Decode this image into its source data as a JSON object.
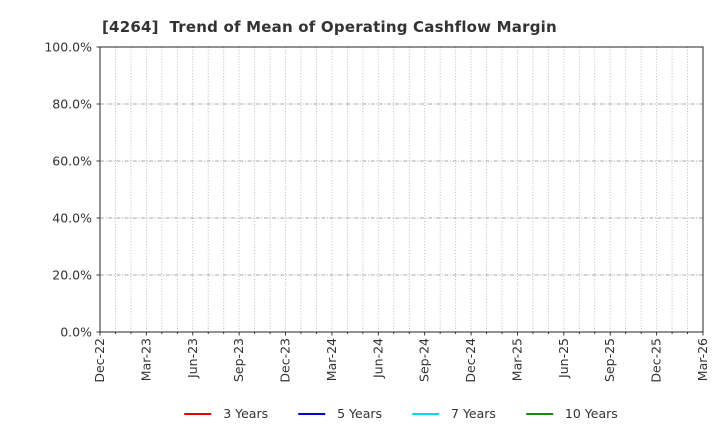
{
  "chart_data": {
    "type": "line",
    "title": "[4264]  Trend of Mean of Operating Cashflow Margin",
    "title_color": "#333333",
    "x_tick_labels": [
      "Dec-22",
      "Mar-23",
      "Jun-23",
      "Sep-23",
      "Dec-23",
      "Mar-24",
      "Jun-24",
      "Sep-24",
      "Dec-24",
      "Mar-25",
      "Jun-25",
      "Sep-25",
      "Dec-25",
      "Mar-26"
    ],
    "x_total_months": 39,
    "x_label_step_months": 3,
    "y_tick_labels": [
      "0.0%",
      "20.0%",
      "40.0%",
      "60.0%",
      "80.0%",
      "100.0%"
    ],
    "ylim": [
      0,
      100
    ],
    "grid": true,
    "legend_position": "bottom-center",
    "axis_color": "#262626",
    "tick_label_color": "#333333",
    "grid_vertical_color": "#b5b5b5",
    "grid_horizontal_color": "#a8a8a8",
    "series": [
      {
        "name": "3 Years",
        "color": "#e80000",
        "values": []
      },
      {
        "name": "5 Years",
        "color": "#0000e0",
        "values": []
      },
      {
        "name": "7 Years",
        "color": "#00dede",
        "values": []
      },
      {
        "name": "10 Years",
        "color": "#178717",
        "values": []
      }
    ]
  }
}
